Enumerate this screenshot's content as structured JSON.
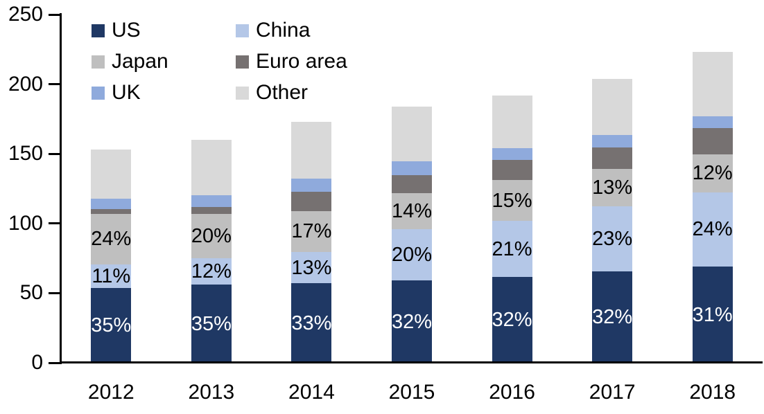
{
  "chart_data": {
    "type": "bar",
    "stacked": true,
    "categories": [
      "2012",
      "2013",
      "2014",
      "2015",
      "2016",
      "2017",
      "2018"
    ],
    "series": [
      {
        "name": "US",
        "color": "#1f3864",
        "values": [
          53.5,
          56,
          57,
          59,
          61.5,
          65.5,
          69
        ],
        "labels": [
          "35%",
          "35%",
          "33%",
          "32%",
          "32%",
          "32%",
          "31%"
        ],
        "label_color": "#ffffff"
      },
      {
        "name": "China",
        "color": "#b4c7e7",
        "values": [
          17,
          19,
          22.5,
          37,
          40.5,
          47,
          53.5
        ],
        "labels": [
          "11%",
          "12%",
          "13%",
          "20%",
          "21%",
          "23%",
          "24%"
        ],
        "label_color": "#000000"
      },
      {
        "name": "Japan",
        "color": "#bfbfbf",
        "values": [
          36.5,
          32,
          29.5,
          26,
          29,
          26.5,
          27
        ],
        "labels": [
          "24%",
          "20%",
          "17%",
          "14%",
          "15%",
          "13%",
          "12%"
        ],
        "label_color": "#000000"
      },
      {
        "name": "Euro area",
        "color": "#767171",
        "values": [
          3.5,
          5,
          14,
          12.5,
          14.5,
          15.5,
          19
        ],
        "labels": null
      },
      {
        "name": "UK",
        "color": "#8faadc",
        "values": [
          7.5,
          8.5,
          9,
          10,
          8.5,
          9,
          8.5
        ],
        "labels": null
      },
      {
        "name": "Other",
        "color": "#d9d9d9",
        "values": [
          35,
          39.5,
          41,
          39.5,
          38,
          40.5,
          46
        ],
        "labels": null
      }
    ],
    "totals": [
      153,
      160,
      173,
      184,
      192,
      204,
      223
    ],
    "y_axis": {
      "min": 0,
      "max": 250,
      "tick_step": 50,
      "ticks": [
        "0",
        "50",
        "100",
        "150",
        "200",
        "250"
      ]
    },
    "x_axis": {
      "ticks": [
        "2012",
        "2013",
        "2014",
        "2015",
        "2016",
        "2017",
        "2018"
      ]
    },
    "axis_color": "#000000",
    "legend": {
      "position": "top-left",
      "columns": 2,
      "order": [
        "US",
        "China",
        "Japan",
        "Euro area",
        "UK",
        "Other"
      ]
    }
  }
}
